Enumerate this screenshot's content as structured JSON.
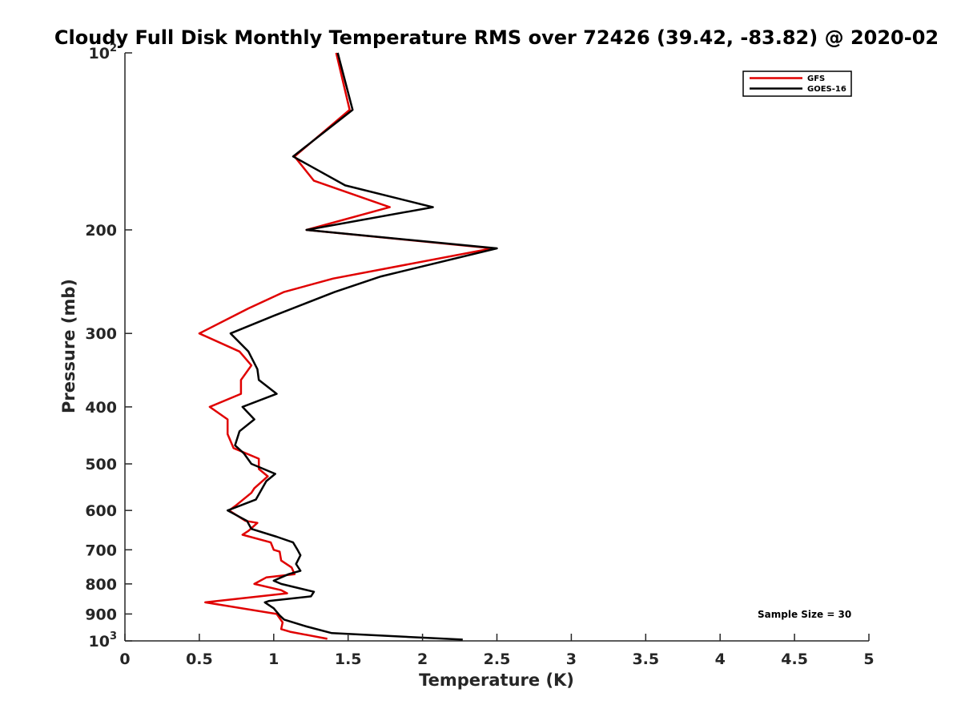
{
  "chart_data": {
    "type": "line",
    "title": "Cloudy Full Disk Monthly Temperature RMS over 72426 (39.42, -83.82) @ 2020-02",
    "xlabel": "Temperature (K)",
    "ylabel": "Pressure (mb)",
    "xlim": [
      0,
      5
    ],
    "ylim": [
      100,
      1000
    ],
    "y_scale": "log",
    "y_reversed": true,
    "x_ticks": [
      "0",
      "0.5",
      "1",
      "1.5",
      "2",
      "2.5",
      "3",
      "3.5",
      "4",
      "4.5",
      "5"
    ],
    "x_tick_values": [
      0,
      0.5,
      1,
      1.5,
      2,
      2.5,
      3,
      3.5,
      4,
      4.5,
      5
    ],
    "y_tick_values": [
      100,
      200,
      300,
      400,
      500,
      600,
      700,
      800,
      900,
      1000
    ],
    "y_tick_labels": [
      {
        "base": "10",
        "exp": "2"
      },
      {
        "base": "200",
        "exp": ""
      },
      {
        "base": "300",
        "exp": ""
      },
      {
        "base": "400",
        "exp": ""
      },
      {
        "base": "500",
        "exp": ""
      },
      {
        "base": "600",
        "exp": ""
      },
      {
        "base": "700",
        "exp": ""
      },
      {
        "base": "800",
        "exp": ""
      },
      {
        "base": "900",
        "exp": ""
      },
      {
        "base": "10",
        "exp": "3"
      }
    ],
    "grid": false,
    "legend_position": "top-right",
    "annotation": "Sample Size = 30",
    "series": [
      {
        "name": "GFS",
        "color": "#e00000",
        "points": [
          [
            1.42,
            100
          ],
          [
            1.51,
            125
          ],
          [
            1.14,
            150
          ],
          [
            1.27,
            165
          ],
          [
            1.78,
            183
          ],
          [
            1.22,
            200
          ],
          [
            2.47,
            215
          ],
          [
            1.4,
            242
          ],
          [
            1.07,
            255
          ],
          [
            0.83,
            272
          ],
          [
            0.5,
            300
          ],
          [
            0.77,
            322
          ],
          [
            0.85,
            340
          ],
          [
            0.78,
            360
          ],
          [
            0.78,
            380
          ],
          [
            0.57,
            400
          ],
          [
            0.69,
            420
          ],
          [
            0.69,
            445
          ],
          [
            0.73,
            470
          ],
          [
            0.9,
            490
          ],
          [
            0.9,
            510
          ],
          [
            0.96,
            525
          ],
          [
            0.87,
            550
          ],
          [
            0.85,
            560
          ],
          [
            0.74,
            590
          ],
          [
            0.7,
            600
          ],
          [
            0.81,
            625
          ],
          [
            0.89,
            630
          ],
          [
            0.83,
            650
          ],
          [
            0.79,
            660
          ],
          [
            0.98,
            680
          ],
          [
            1.0,
            700
          ],
          [
            1.04,
            705
          ],
          [
            1.05,
            730
          ],
          [
            1.12,
            750
          ],
          [
            1.14,
            770
          ],
          [
            0.95,
            780
          ],
          [
            0.87,
            800
          ],
          [
            1.05,
            820
          ],
          [
            1.09,
            830
          ],
          [
            0.54,
            860
          ],
          [
            1.02,
            900
          ],
          [
            1.06,
            930
          ],
          [
            1.05,
            955
          ],
          [
            1.11,
            965
          ],
          [
            1.36,
            992
          ]
        ]
      },
      {
        "name": "GOES-16",
        "color": "#000000",
        "points": [
          [
            1.43,
            100
          ],
          [
            1.53,
            125
          ],
          [
            1.13,
            150
          ],
          [
            1.48,
            168
          ],
          [
            2.07,
            183
          ],
          [
            1.22,
            200
          ],
          [
            2.5,
            215
          ],
          [
            1.72,
            240
          ],
          [
            1.41,
            255
          ],
          [
            1.0,
            280
          ],
          [
            0.71,
            300
          ],
          [
            0.83,
            322
          ],
          [
            0.89,
            345
          ],
          [
            0.9,
            360
          ],
          [
            1.02,
            380
          ],
          [
            0.79,
            400
          ],
          [
            0.87,
            420
          ],
          [
            0.77,
            440
          ],
          [
            0.74,
            465
          ],
          [
            0.8,
            480
          ],
          [
            0.85,
            500
          ],
          [
            1.01,
            520
          ],
          [
            0.95,
            535
          ],
          [
            0.88,
            575
          ],
          [
            0.69,
            600
          ],
          [
            0.82,
            625
          ],
          [
            0.85,
            645
          ],
          [
            1.02,
            665
          ],
          [
            1.13,
            680
          ],
          [
            1.16,
            700
          ],
          [
            1.18,
            715
          ],
          [
            1.15,
            740
          ],
          [
            1.18,
            760
          ],
          [
            1.1,
            770
          ],
          [
            1.0,
            790
          ],
          [
            1.05,
            800
          ],
          [
            1.27,
            825
          ],
          [
            1.25,
            840
          ],
          [
            0.97,
            855
          ],
          [
            0.94,
            860
          ],
          [
            1.0,
            880
          ],
          [
            1.04,
            905
          ],
          [
            1.07,
            920
          ],
          [
            1.22,
            945
          ],
          [
            1.39,
            970
          ],
          [
            2.27,
            995
          ]
        ]
      }
    ]
  }
}
